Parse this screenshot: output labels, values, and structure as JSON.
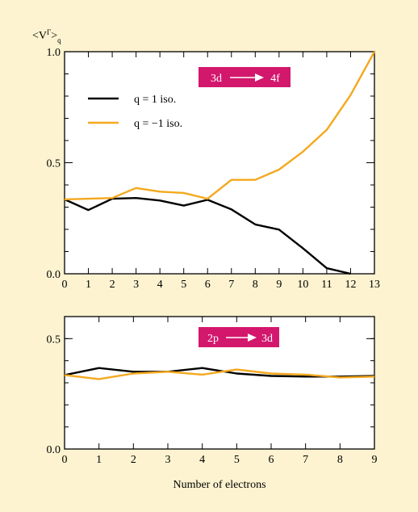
{
  "figure": {
    "y_axis_label": "<V",
    "y_axis_label_sup": "Γ",
    "y_axis_label_close": ">",
    "y_axis_label_sub": "q",
    "x_axis_label": "Number of electrons"
  },
  "colors": {
    "background": "#fdf3d0",
    "plot_bg": "#ffffff",
    "q_plus": "#000000",
    "q_minus": "#f4a81e",
    "badge": "#d3176d"
  },
  "chart_data": [
    {
      "type": "line",
      "badge": {
        "from": "3d",
        "to": "4f"
      },
      "xlim": [
        0,
        13
      ],
      "ylim": [
        0,
        1
      ],
      "x_ticks": [
        "0",
        "1",
        "2",
        "3",
        "4",
        "5",
        "6",
        "7",
        "8",
        "9",
        "10",
        "11",
        "12",
        "13"
      ],
      "y_ticks": [
        "0.0",
        "0.5",
        "1.0"
      ],
      "legend": "top-left",
      "x": [
        0,
        1,
        2,
        3,
        4,
        5,
        6,
        7,
        8,
        9,
        10,
        11,
        12,
        13
      ],
      "series": [
        {
          "name": "q = 1 iso.",
          "color": "#000000",
          "x": [
            0,
            1,
            2,
            3,
            4,
            5,
            6,
            7,
            8,
            9,
            10,
            11,
            12
          ],
          "values": [
            0.335,
            0.287,
            0.338,
            0.341,
            0.33,
            0.307,
            0.333,
            0.29,
            0.222,
            0.199,
            0.115,
            0.025,
            0.0
          ]
        },
        {
          "name": "q = −1 iso.",
          "color": "#f4a81e",
          "x": [
            0,
            1,
            2,
            3,
            4,
            5,
            6,
            7,
            8,
            9,
            10,
            11,
            12,
            13
          ],
          "values": [
            0.335,
            0.338,
            0.341,
            0.386,
            0.37,
            0.364,
            0.338,
            0.423,
            0.423,
            0.469,
            0.55,
            0.648,
            0.805,
            1.0
          ]
        }
      ]
    },
    {
      "type": "line",
      "badge": {
        "from": "2p",
        "to": "3d"
      },
      "xlim": [
        0,
        9
      ],
      "ylim": [
        0,
        0.6
      ],
      "x_ticks": [
        "0",
        "1",
        "2",
        "3",
        "4",
        "5",
        "6",
        "7",
        "8",
        "9"
      ],
      "y_ticks": [
        "0.0",
        "0.5"
      ],
      "x": [
        0,
        1,
        2,
        3,
        4,
        5,
        6,
        7,
        8,
        9
      ],
      "series": [
        {
          "color": "#000000",
          "values": [
            0.335,
            0.367,
            0.35,
            0.35,
            0.367,
            0.342,
            0.331,
            0.328,
            0.328,
            0.331
          ]
        },
        {
          "color": "#f4a81e",
          "values": [
            0.335,
            0.317,
            0.342,
            0.35,
            0.337,
            0.36,
            0.342,
            0.337,
            0.324,
            0.328
          ]
        }
      ]
    }
  ]
}
